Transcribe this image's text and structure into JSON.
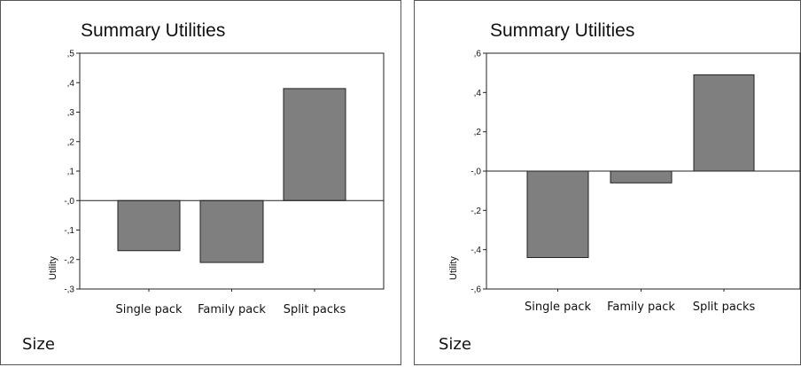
{
  "chart_data": [
    {
      "type": "bar",
      "title": "Summary Utilities",
      "ylabel": "Utility",
      "footer": "Size",
      "categories": [
        "Single pack",
        "Family pack",
        "Split packs"
      ],
      "values": [
        -0.17,
        -0.21,
        0.38
      ],
      "ylim": [
        -0.3,
        0.5
      ],
      "yticks": [
        -0.3,
        -0.2,
        -0.1,
        0.0,
        0.1,
        0.2,
        0.3,
        0.4,
        0.5
      ],
      "yticklabels": [
        "-,3",
        "-,2",
        "-,1",
        "-,0",
        ",1",
        ",2",
        ",3",
        ",4",
        ",5"
      ],
      "bar_color": "#7f7f7f",
      "grid": false
    },
    {
      "type": "bar",
      "title": "Summary Utilities",
      "ylabel": "Utility",
      "footer": "Size",
      "categories": [
        "Single pack",
        "Family pack",
        "Split packs"
      ],
      "values": [
        -0.44,
        -0.06,
        0.49
      ],
      "ylim": [
        -0.6,
        0.6
      ],
      "yticks": [
        -0.6,
        -0.4,
        -0.2,
        0.0,
        0.2,
        0.4,
        0.6
      ],
      "yticklabels": [
        "-,6",
        "-,4",
        "-,2",
        "-,0",
        ",2",
        ",4",
        ",6"
      ],
      "bar_color": "#7f7f7f",
      "grid": false
    }
  ]
}
